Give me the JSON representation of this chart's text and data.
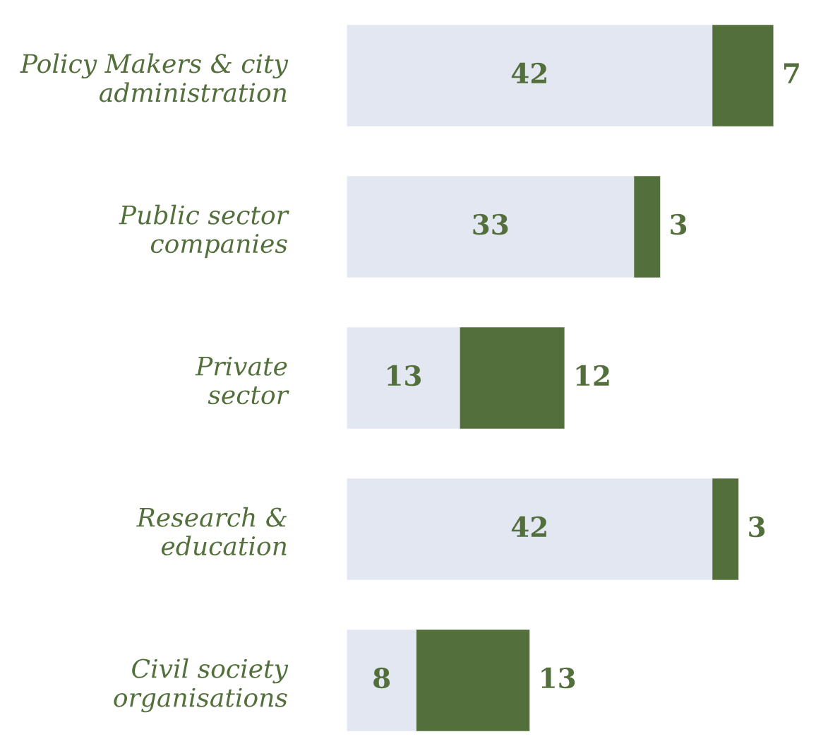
{
  "chart_data": {
    "type": "bar",
    "orientation": "horizontal",
    "stacked": true,
    "data_labels": true,
    "categories": [
      "Policy Makers & city\nadministration",
      "Public sector\ncompanies",
      "Private\nsector",
      "Research &\neducation",
      "Civil society\norganisations"
    ],
    "series": [
      {
        "color": "#e3e7f1",
        "values": [
          42,
          33,
          13,
          42,
          8
        ]
      },
      {
        "color": "#53703c",
        "values": [
          7,
          3,
          12,
          3,
          13
        ]
      }
    ]
  }
}
